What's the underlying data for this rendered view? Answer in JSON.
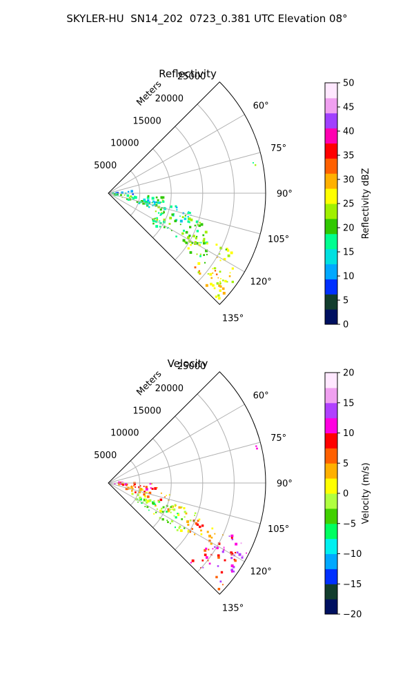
{
  "figure": {
    "title": "SKYLER-HU  SN14_202  0723_0.381 UTC Elevation 08°"
  },
  "chart_data": [
    {
      "type": "polar-sector",
      "title": "Reflectivity",
      "range_label": "Meters",
      "theta_range_deg": [
        45,
        135
      ],
      "range_max": 25000,
      "range_ticks": [
        5000,
        10000,
        15000,
        20000,
        25000
      ],
      "range_tick_labels": [
        "5000",
        "10000",
        "15000",
        "20000",
        "25000"
      ],
      "azimuth_ticks": [
        60,
        75,
        90,
        105,
        120,
        135
      ],
      "azimuth_tick_labels": [
        "60°",
        "75°",
        "90°",
        "105°",
        "120°",
        "135°"
      ],
      "grid": true,
      "colorbar": {
        "label": "Reflectivity dBZ",
        "range": [
          0,
          50
        ],
        "ticks": [
          0,
          5,
          10,
          15,
          20,
          25,
          30,
          35,
          40,
          45,
          50
        ],
        "tick_labels": [
          "0",
          "5",
          "10",
          "15",
          "20",
          "25",
          "30",
          "35",
          "40",
          "45",
          "50"
        ],
        "stops": [
          "#001060",
          "#123d2d",
          "#0030ff",
          "#00a8ff",
          "#00e0e0",
          "#00ff90",
          "#30c800",
          "#a0f000",
          "#ffff00",
          "#ffb000",
          "#ff6000",
          "#ff0000",
          "#ff00b0",
          "#a040ff",
          "#f0a0f0",
          "#ffe8ff"
        ]
      },
      "echo_regions": [
        {
          "az": [
            85,
            93
          ],
          "range": [
            600,
            4200
          ],
          "value": 12
        },
        {
          "az": [
            94,
            108
          ],
          "range": [
            500,
            9000
          ],
          "value": 20
        },
        {
          "az": [
            100,
            112
          ],
          "range": [
            5000,
            14000
          ],
          "value": 15
        },
        {
          "az": [
            107,
            125
          ],
          "range": [
            8000,
            18000
          ],
          "value": 20
        },
        {
          "az": [
            115,
            126
          ],
          "range": [
            15000,
            22000
          ],
          "value": 24
        },
        {
          "az": [
            125,
            134
          ],
          "range": [
            18000,
            24500
          ],
          "value": 28
        },
        {
          "az": [
            120,
            130
          ],
          "range": [
            20000,
            24000
          ],
          "value": 26
        },
        {
          "az": [
            76,
            80
          ],
          "range": [
            23500,
            24800
          ],
          "value": 20
        }
      ]
    },
    {
      "type": "polar-sector",
      "title": "Velocity",
      "range_label": "Meters",
      "theta_range_deg": [
        45,
        135
      ],
      "range_max": 25000,
      "range_ticks": [
        5000,
        10000,
        15000,
        20000,
        25000
      ],
      "range_tick_labels": [
        "5000",
        "10000",
        "15000",
        "20000",
        "25000"
      ],
      "azimuth_ticks": [
        60,
        75,
        90,
        105,
        120,
        135
      ],
      "azimuth_tick_labels": [
        "60°",
        "75°",
        "90°",
        "105°",
        "120°",
        "135°"
      ],
      "grid": true,
      "colorbar": {
        "label": "Velocity (m/s)",
        "range": [
          -20,
          20
        ],
        "ticks": [
          -20,
          -15,
          -10,
          -5,
          0,
          5,
          10,
          15,
          20
        ],
        "tick_labels": [
          "−20",
          "−15",
          "−10",
          "−5",
          "0",
          "5",
          "10",
          "15",
          "20"
        ],
        "stops": [
          "#001060",
          "#123d2d",
          "#0030ff",
          "#00a8ff",
          "#00f0f0",
          "#00ff60",
          "#40d000",
          "#b0ff40",
          "#ffff00",
          "#ffb000",
          "#ff6000",
          "#ff0000",
          "#ff00e0",
          "#b040ff",
          "#f0a0f0",
          "#ffe8ff"
        ]
      },
      "echo_regions": [
        {
          "az": [
            84,
            90
          ],
          "range": [
            800,
            3500
          ],
          "value": 13
        },
        {
          "az": [
            90,
            100
          ],
          "range": [
            500,
            8000
          ],
          "value": 8
        },
        {
          "az": [
            100,
            110
          ],
          "range": [
            3000,
            10000
          ],
          "value": 4
        },
        {
          "az": [
            108,
            116
          ],
          "range": [
            8000,
            16000
          ],
          "value": 2
        },
        {
          "az": [
            113,
            122
          ],
          "range": [
            14000,
            20000
          ],
          "value": 6
        },
        {
          "az": [
            118,
            134
          ],
          "range": [
            18000,
            24500
          ],
          "value": 10
        },
        {
          "az": [
            112,
            120
          ],
          "range": [
            21000,
            25000
          ],
          "value": 13
        },
        {
          "az": [
            110,
            125
          ],
          "range": [
            4000,
            15000
          ],
          "value": -3
        },
        {
          "az": [
            76,
            80
          ],
          "range": [
            23500,
            24800
          ],
          "value": 13
        }
      ]
    }
  ]
}
